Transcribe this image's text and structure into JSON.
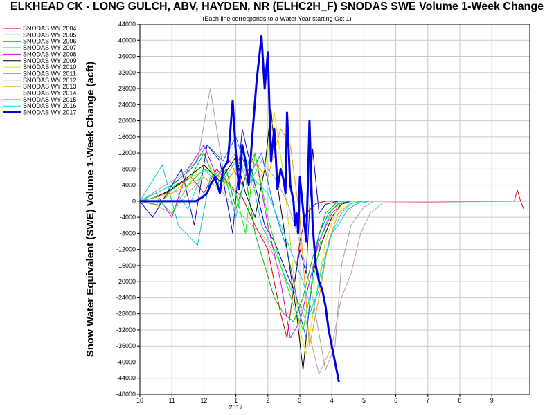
{
  "chart_data": {
    "type": "line",
    "title": "ELKHEAD CK - LONG GULCH, ABV, HAYDEN, NR (ELHC2H_F) SNODAS SWE Volume 1-Week Change",
    "subtitle": "(Each line corresponds to a Water Year starting Oct 1)",
    "ylabel": "Snow Water Equivalent (SWE) Volume 1-Week Change (acft)",
    "xlabel": "",
    "ylim": [
      -48000,
      44000
    ],
    "y_ticks": [
      44000,
      40000,
      36000,
      32000,
      28000,
      24000,
      20000,
      16000,
      12000,
      8000,
      4000,
      0,
      -4000,
      -8000,
      -12000,
      -16000,
      -20000,
      -24000,
      -28000,
      -32000,
      -36000,
      -40000,
      -44000,
      -48000
    ],
    "x_ticks": [
      "10",
      "11",
      "12",
      "1",
      "2",
      "3",
      "4",
      "5",
      "6",
      "7",
      "8",
      "9"
    ],
    "x_year_label": "2017",
    "grid": true,
    "legend_placement": "top-left, outside plot",
    "series": [
      {
        "name": "SNODAS WY 2004",
        "color": "#d00000",
        "width": 1,
        "x": [
          0,
          0.4,
          0.8,
          1.2,
          1.6,
          2.0,
          2.4,
          2.8,
          3.2,
          3.6,
          4.0,
          4.2,
          4.4,
          4.6,
          4.8,
          5.0,
          5.2,
          5.5,
          5.8,
          6.2,
          7,
          8,
          9,
          11.7,
          11.8,
          11.9,
          12.0
        ],
        "values": [
          0,
          800,
          2000,
          4000,
          6000,
          2000,
          8000,
          4000,
          1000,
          -6000,
          -12000,
          -20000,
          -28000,
          -34000,
          -22000,
          -10000,
          -3000,
          -600,
          0,
          0,
          0,
          0,
          0,
          0,
          2800,
          0,
          -2000
        ]
      },
      {
        "name": "SNODAS WY 2005",
        "color": "#0000c0",
        "width": 1,
        "x": [
          0,
          0.2,
          0.4,
          0.7,
          1.0,
          1.3,
          1.7,
          2.1,
          2.5,
          2.9,
          3.2,
          3.6,
          3.9,
          4.2,
          4.5,
          4.8,
          5.0,
          5.2,
          5.4,
          5.6,
          5.8,
          6.2,
          7,
          12
        ],
        "values": [
          0,
          -2000,
          -4000,
          0,
          4000,
          8000,
          -6000,
          14000,
          10000,
          -8000,
          18000,
          4000,
          -6000,
          -10000,
          -16000,
          -22000,
          -12000,
          -18000,
          13000,
          -3000,
          -800,
          0,
          0,
          0
        ]
      },
      {
        "name": "SNODAS WY 2006",
        "color": "#00b000",
        "width": 1,
        "x": [
          0,
          0.6,
          1.1,
          1.6,
          2.0,
          2.4,
          2.7,
          3.0,
          3.3,
          3.6,
          3.9,
          4.2,
          4.5,
          4.8,
          5.1,
          5.4,
          5.8,
          6.2,
          7,
          12
        ],
        "values": [
          0,
          -1000,
          4000,
          6000,
          12000,
          4000,
          8000,
          -2000,
          6000,
          -8000,
          -16000,
          -24000,
          -28000,
          -30000,
          -24000,
          -14000,
          -3000,
          0,
          0,
          0
        ]
      },
      {
        "name": "SNODAS WY 2007",
        "color": "#00c8c8",
        "width": 1,
        "x": [
          0,
          0.7,
          1.2,
          1.8,
          2.2,
          2.6,
          3.0,
          3.4,
          3.8,
          4.2,
          4.6,
          5.0,
          5.3,
          5.6,
          5.8,
          6.0,
          6.2,
          6.5,
          6.8,
          7.2,
          12
        ],
        "values": [
          0,
          9000,
          -6000,
          -11000,
          6000,
          8000,
          -4000,
          10000,
          -6000,
          -12000,
          -20000,
          -26000,
          -28000,
          -22000,
          -14000,
          -8000,
          -6000,
          -2000,
          -600,
          0,
          0
        ]
      },
      {
        "name": "SNODAS WY 2008",
        "color": "#e000e0",
        "width": 1,
        "x": [
          0,
          0.5,
          1.0,
          1.5,
          2.0,
          2.4,
          2.8,
          3.2,
          3.6,
          4.0,
          4.4,
          4.7,
          5.0,
          5.3,
          5.6,
          6.0,
          6.4,
          7,
          12
        ],
        "values": [
          0,
          2000,
          -4000,
          8000,
          14000,
          6000,
          10000,
          4000,
          12000,
          -6000,
          -20000,
          -34000,
          -30000,
          -20000,
          -10000,
          -3000,
          0,
          0,
          0
        ]
      },
      {
        "name": "SNODAS WY 2009",
        "color": "#000000",
        "width": 1,
        "x": [
          0,
          0.5,
          1.0,
          1.5,
          2.0,
          2.5,
          3.0,
          3.3,
          3.6,
          3.9,
          4.1,
          4.3,
          4.6,
          4.9,
          5.1,
          5.4,
          5.7,
          6.0,
          6.3,
          6.6,
          7,
          12
        ],
        "values": [
          0,
          1000,
          3000,
          6000,
          9000,
          5000,
          11000,
          2000,
          -4000,
          8000,
          23000,
          4000,
          -12000,
          -28000,
          -42000,
          -18000,
          -10000,
          -4000,
          -800,
          0,
          0,
          0
        ]
      },
      {
        "name": "SNODAS WY 2010",
        "color": "#e0e000",
        "width": 1,
        "x": [
          0,
          0.5,
          1.0,
          1.6,
          2.2,
          2.7,
          3.1,
          3.5,
          3.9,
          4.2,
          4.5,
          4.8,
          5.0,
          5.2,
          5.5,
          5.8,
          6.1,
          6.4,
          7,
          12
        ],
        "values": [
          0,
          -1000,
          2000,
          6000,
          8000,
          4000,
          10000,
          2000,
          8000,
          22000,
          6000,
          -18000,
          -32000,
          -38000,
          -24000,
          -10000,
          -3000,
          0,
          0,
          0
        ]
      },
      {
        "name": "SNODAS WY 2011",
        "color": "#a0a0a0",
        "width": 1,
        "x": [
          0,
          0.6,
          1.2,
          1.8,
          2.2,
          2.6,
          3.0,
          3.4,
          3.8,
          4.2,
          4.6,
          5.0,
          5.4,
          5.8,
          6.1,
          6.3,
          6.6,
          7.0,
          7.3,
          12
        ],
        "values": [
          0,
          3000,
          6000,
          10000,
          28000,
          8000,
          12000,
          4000,
          10000,
          6000,
          0,
          -10000,
          -24000,
          -42000,
          -36000,
          -16000,
          -6000,
          -1500,
          0,
          0
        ]
      },
      {
        "name": "SNODAS WY 2012",
        "color": "#c89696",
        "width": 1,
        "x": [
          0,
          0.5,
          1.0,
          1.5,
          2.0,
          2.5,
          3.0,
          3.5,
          4.0,
          4.4,
          4.8,
          5.2,
          5.6,
          6.0,
          6.3,
          6.6,
          6.9,
          7.2,
          7.6,
          12
        ],
        "values": [
          0,
          -1000,
          -3000,
          2000,
          6000,
          3000,
          -2000,
          -6000,
          -10000,
          -18000,
          -22000,
          -30000,
          -43000,
          -36000,
          -24000,
          -18000,
          -8000,
          -3000,
          -400,
          0
        ]
      },
      {
        "name": "SNODAS WY 2013",
        "color": "#ff9600",
        "width": 1,
        "x": [
          0,
          0.5,
          1.0,
          1.5,
          2.0,
          2.5,
          3.0,
          3.5,
          4.0,
          4.4,
          4.7,
          5.0,
          5.3,
          5.6,
          5.9,
          6.2,
          6.6,
          7.0,
          12
        ],
        "values": [
          0,
          1000,
          2000,
          4000,
          6000,
          3000,
          8000,
          10000,
          6000,
          18000,
          14000,
          -4000,
          -36000,
          -24000,
          -10000,
          -3000,
          -500,
          0,
          0
        ]
      },
      {
        "name": "SNODAS WY 2014",
        "color": "#0064ff",
        "width": 1,
        "x": [
          0,
          0.5,
          1.0,
          1.6,
          2.1,
          2.6,
          3.0,
          3.4,
          3.8,
          4.2,
          4.6,
          5.0,
          5.2,
          5.4,
          5.6,
          5.9,
          6.2,
          6.6,
          7,
          12
        ],
        "values": [
          0,
          2000,
          4000,
          8000,
          14000,
          10000,
          16000,
          6000,
          12000,
          -2000,
          -12000,
          -28000,
          -34000,
          -18000,
          -8000,
          -3000,
          -600,
          0,
          0,
          0
        ]
      },
      {
        "name": "SNODAS WY 2015",
        "color": "#00ff00",
        "width": 1,
        "x": [
          0,
          0.5,
          1.0,
          1.5,
          2.0,
          2.5,
          3.0,
          3.3,
          3.6,
          4.0,
          4.4,
          4.8,
          5.1,
          5.4,
          5.7,
          6.0,
          6.4,
          7,
          12
        ],
        "values": [
          0,
          1000,
          -3000,
          4000,
          8000,
          6000,
          2000,
          -8000,
          12000,
          -4000,
          -16000,
          -26000,
          -32000,
          -20000,
          -8000,
          -2000,
          0,
          0,
          0
        ]
      },
      {
        "name": "SNODAS WY 2016",
        "color": "#00e0e0",
        "width": 1,
        "x": [
          0,
          0.5,
          1.0,
          1.5,
          2.0,
          2.5,
          3.0,
          3.5,
          4.0,
          4.4,
          4.8,
          5.1,
          5.4,
          5.7,
          6.0,
          6.3,
          6.6,
          7,
          12
        ],
        "values": [
          0,
          2000,
          4000,
          -2000,
          8000,
          4000,
          10000,
          6000,
          2000,
          -6000,
          -14000,
          -20000,
          -28000,
          -16000,
          -8000,
          -3000,
          -600,
          0,
          0
        ]
      },
      {
        "name": "SNODAS WY 2017",
        "color": "#0000e6",
        "width": 3,
        "x": [
          0,
          0.4,
          1.0,
          1.5,
          1.75,
          1.95,
          2.1,
          2.2,
          2.35,
          2.5,
          2.6,
          2.75,
          2.9,
          3.0,
          3.1,
          3.2,
          3.3,
          3.4,
          3.55,
          3.65,
          3.8,
          3.9,
          4.0,
          4.1,
          4.2,
          4.3,
          4.4,
          4.5,
          4.55,
          4.6,
          4.7,
          4.8,
          4.85,
          4.9,
          4.95,
          5.0,
          5.1,
          5.2,
          5.25,
          5.3,
          5.4,
          5.5,
          5.6,
          5.7,
          5.8,
          5.9,
          5.95,
          6.0,
          6.05,
          6.1,
          6.15,
          6.2,
          6.22
        ],
        "values": [
          0,
          0,
          0,
          0,
          0,
          1000,
          2000,
          4000,
          6000,
          2000,
          8000,
          10000,
          25000,
          12000,
          3000,
          14000,
          10000,
          4000,
          20000,
          30000,
          41000,
          28000,
          37000,
          10000,
          18000,
          3000,
          8000,
          5000,
          2000,
          22000,
          4000,
          0,
          -6000,
          -3000,
          -8000,
          6000,
          -2000,
          -10000,
          4000,
          20000,
          -6000,
          -16000,
          -20000,
          -22000,
          -26000,
          -32000,
          -34000,
          -36000,
          -38000,
          -40000,
          -42000,
          -44000,
          -45000
        ]
      }
    ]
  }
}
